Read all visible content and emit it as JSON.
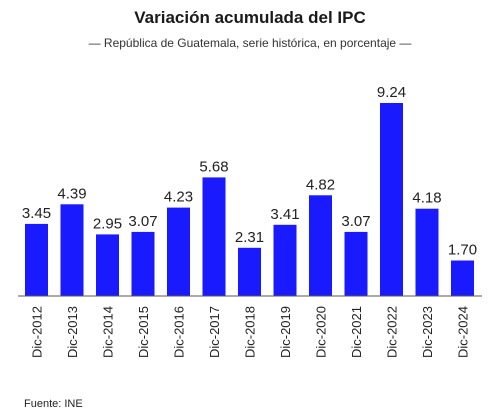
{
  "title": "Variación acumulada del IPC",
  "subtitle": "— República de Guatemala, serie histórica, en porcentaje —",
  "source": "Fuente: INE",
  "chart_data": {
    "type": "bar",
    "title": "Variación acumulada del IPC",
    "subtitle": "— República de Guatemala, serie histórica, en porcentaje —",
    "categories": [
      "Dic-2012",
      "Dic-2013",
      "Dic-2014",
      "Dic-2015",
      "Dic-2016",
      "Dic-2017",
      "Dic-2018",
      "Dic-2019",
      "Dic-2020",
      "Dic-2021",
      "Dic-2022",
      "Dic-2023",
      "Dic-2024"
    ],
    "values": [
      3.45,
      4.39,
      2.95,
      3.07,
      4.23,
      5.68,
      2.31,
      3.41,
      4.82,
      3.07,
      9.24,
      4.18,
      1.7
    ],
    "value_labels": [
      "3.45",
      "4.39",
      "2.95",
      "3.07",
      "4.23",
      "5.68",
      "2.31",
      "3.41",
      "4.82",
      "3.07",
      "9.24",
      "4.18",
      "1.70"
    ],
    "ylim": [
      0,
      9.24
    ],
    "bar_color": "#1a1aff",
    "grid": false,
    "legend": "none"
  }
}
